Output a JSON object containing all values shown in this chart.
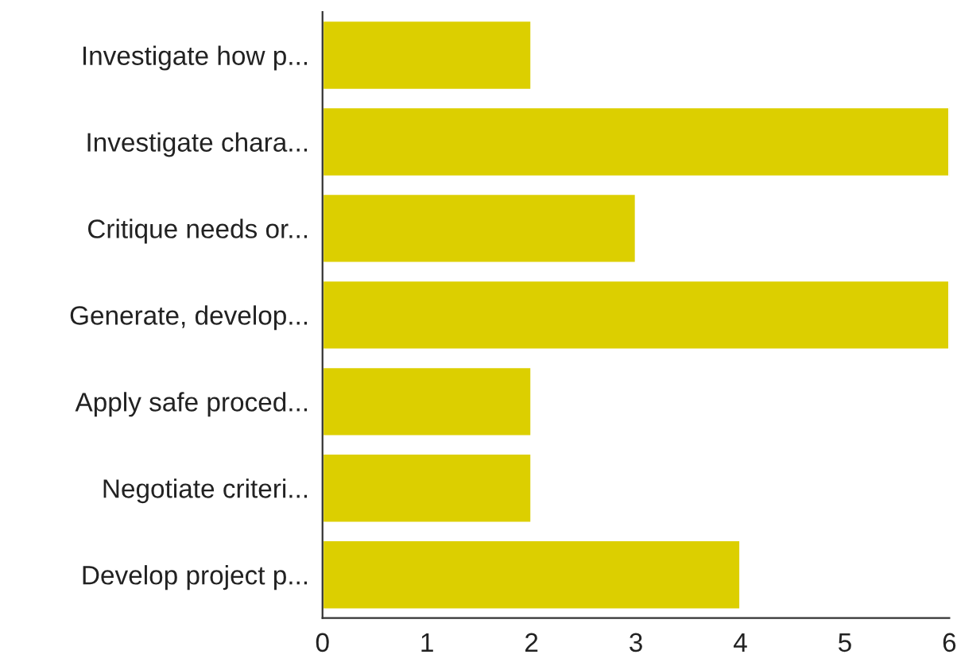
{
  "chart_data": {
    "type": "bar",
    "orientation": "horizontal",
    "categories": [
      "Investigate how p...",
      "Investigate chara...",
      "Critique needs or...",
      "Generate, develop...",
      "Apply safe proced...",
      "Negotiate criteri...",
      "Develop project p..."
    ],
    "values": [
      2,
      6,
      3,
      6,
      2,
      2,
      4
    ],
    "color": "#dccf00",
    "xlim": [
      0,
      6
    ],
    "xticks": [
      0,
      1,
      2,
      3,
      4,
      5,
      6
    ],
    "grid": false,
    "legend": false
  }
}
